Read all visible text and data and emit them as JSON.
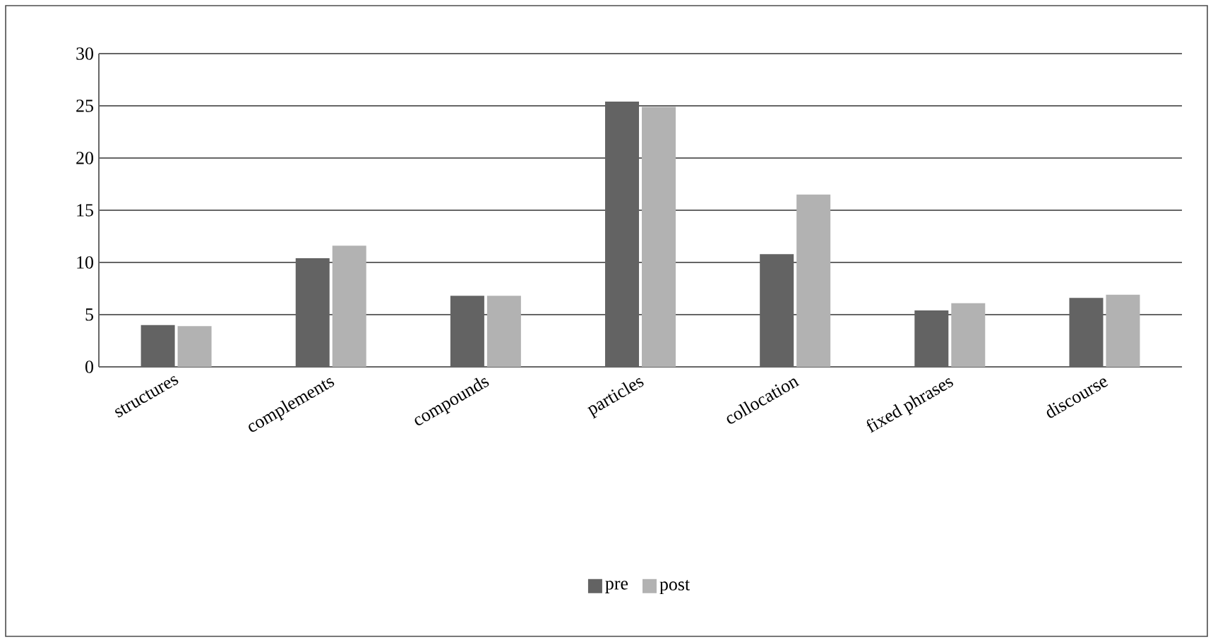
{
  "chart_data": {
    "type": "bar",
    "categories": [
      "structures",
      "complements",
      "compounds",
      "particles",
      "collocation",
      "fixed phrases",
      "discourse"
    ],
    "series": [
      {
        "name": "pre",
        "color": "#636363",
        "values": [
          4.0,
          10.4,
          6.8,
          25.4,
          10.8,
          5.4,
          6.6
        ]
      },
      {
        "name": "post",
        "color": "#b2b2b2",
        "values": [
          3.9,
          11.6,
          6.8,
          24.9,
          16.5,
          6.1,
          6.9
        ]
      }
    ],
    "ylim": [
      0,
      30
    ],
    "yticks": [
      0,
      5,
      10,
      15,
      20,
      25,
      30
    ],
    "grid": "y",
    "legend": "bottom"
  }
}
